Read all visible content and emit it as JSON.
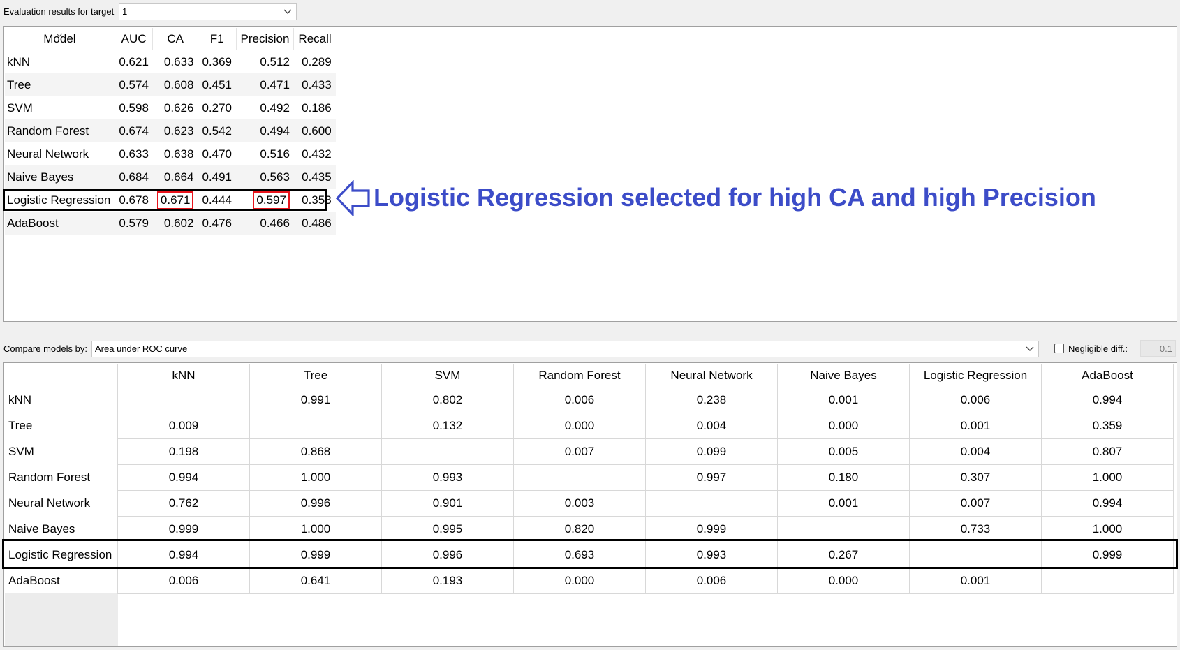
{
  "target": {
    "label": "Evaluation results for target",
    "value": "1"
  },
  "eval": {
    "headers": [
      "Model",
      "AUC",
      "CA",
      "F1",
      "Precision",
      "Recall"
    ],
    "rows": [
      {
        "model": "kNN",
        "auc": "0.621",
        "ca": "0.633",
        "f1": "0.369",
        "precision": "0.512",
        "recall": "0.289"
      },
      {
        "model": "Tree",
        "auc": "0.574",
        "ca": "0.608",
        "f1": "0.451",
        "precision": "0.471",
        "recall": "0.433"
      },
      {
        "model": "SVM",
        "auc": "0.598",
        "ca": "0.626",
        "f1": "0.270",
        "precision": "0.492",
        "recall": "0.186"
      },
      {
        "model": "Random Forest",
        "auc": "0.674",
        "ca": "0.623",
        "f1": "0.542",
        "precision": "0.494",
        "recall": "0.600"
      },
      {
        "model": "Neural Network",
        "auc": "0.633",
        "ca": "0.638",
        "f1": "0.470",
        "precision": "0.516",
        "recall": "0.432"
      },
      {
        "model": "Naive Bayes",
        "auc": "0.684",
        "ca": "0.664",
        "f1": "0.491",
        "precision": "0.563",
        "recall": "0.435"
      },
      {
        "model": "Logistic Regression",
        "auc": "0.678",
        "ca": "0.671",
        "f1": "0.444",
        "precision": "0.597",
        "recall": "0.353"
      },
      {
        "model": "AdaBoost",
        "auc": "0.579",
        "ca": "0.602",
        "f1": "0.476",
        "precision": "0.466",
        "recall": "0.486"
      }
    ]
  },
  "annotation": {
    "text": "Logistic Regression selected for high CA and high Precision"
  },
  "compare": {
    "label": "Compare models by:",
    "value": "Area under ROC curve",
    "negligible_label": "Negligible diff.:",
    "negligible_value": "0.1",
    "columns": [
      "kNN",
      "Tree",
      "SVM",
      "Random Forest",
      "Neural Network",
      "Naive Bayes",
      "Logistic Regression",
      "AdaBoost"
    ],
    "rows": [
      {
        "name": "kNN",
        "values": [
          "",
          "0.991",
          "0.802",
          "0.006",
          "0.238",
          "0.001",
          "0.006",
          "0.994"
        ]
      },
      {
        "name": "Tree",
        "values": [
          "0.009",
          "",
          "0.132",
          "0.000",
          "0.004",
          "0.000",
          "0.001",
          "0.359"
        ]
      },
      {
        "name": "SVM",
        "values": [
          "0.198",
          "0.868",
          "",
          "0.007",
          "0.099",
          "0.005",
          "0.004",
          "0.807"
        ]
      },
      {
        "name": "Random Forest",
        "values": [
          "0.994",
          "1.000",
          "0.993",
          "",
          "0.997",
          "0.180",
          "0.307",
          "1.000"
        ]
      },
      {
        "name": "Neural Network",
        "values": [
          "0.762",
          "0.996",
          "0.901",
          "0.003",
          "",
          "0.001",
          "0.007",
          "0.994"
        ]
      },
      {
        "name": "Naive Bayes",
        "values": [
          "0.999",
          "1.000",
          "0.995",
          "0.820",
          "0.999",
          "",
          "0.733",
          "1.000"
        ]
      },
      {
        "name": "Logistic Regression",
        "values": [
          "0.994",
          "0.999",
          "0.996",
          "0.693",
          "0.993",
          "0.267",
          "",
          "0.999"
        ]
      },
      {
        "name": "AdaBoost",
        "values": [
          "0.006",
          "0.641",
          "0.193",
          "0.000",
          "0.006",
          "0.000",
          "0.001",
          ""
        ]
      }
    ]
  },
  "colors": {
    "annotation": "#3c4cc8",
    "highlight": "#e8141c",
    "outline": "#000000"
  }
}
